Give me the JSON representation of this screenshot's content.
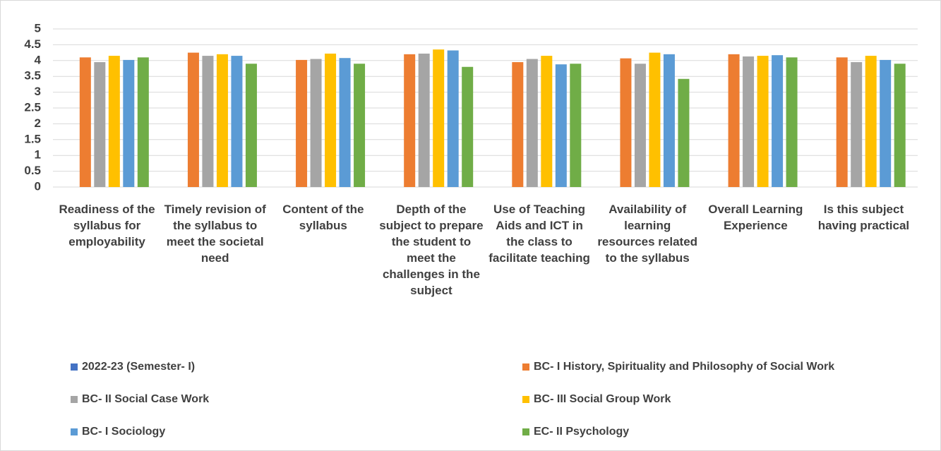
{
  "chart_data": {
    "type": "bar",
    "categories": [
      "Readiness of the syllabus for employability",
      "Timely revision of the syllabus to meet the societal need",
      "Content of the syllabus",
      "Depth of the subject to prepare the student to meet the challenges in the subject",
      "Use of Teaching Aids and ICT in the class to facilitate teaching",
      "Availability of learning resources related to the syllabus",
      "Overall Learning Experience",
      "Is this subject having practical"
    ],
    "series": [
      {
        "name": "2022-23 (Semester- I)",
        "color": "#4472c4",
        "values": [
          null,
          null,
          null,
          null,
          null,
          null,
          null,
          null
        ]
      },
      {
        "name": "BC- I History, Spirituality and Philosophy of Social Work",
        "color": "#ed7d31",
        "values": [
          4.1,
          4.25,
          4.02,
          4.2,
          3.95,
          4.07,
          4.2,
          4.1
        ]
      },
      {
        "name": "BC- II Social Case Work",
        "color": "#a5a5a5",
        "values": [
          3.95,
          4.15,
          4.05,
          4.22,
          4.05,
          3.9,
          4.13,
          3.95
        ]
      },
      {
        "name": "BC- III Social Group Work",
        "color": "#ffc000",
        "values": [
          4.15,
          4.2,
          4.22,
          4.35,
          4.15,
          4.25,
          4.15,
          4.15
        ]
      },
      {
        "name": "BC- I Sociology",
        "color": "#5b9bd5",
        "values": [
          4.02,
          4.15,
          4.08,
          4.32,
          3.88,
          4.2,
          4.17,
          4.02
        ]
      },
      {
        "name": "EC- II Psychology",
        "color": "#70ad47",
        "values": [
          4.1,
          3.9,
          3.9,
          3.8,
          3.9,
          3.42,
          4.1,
          3.9
        ]
      }
    ],
    "ylim": [
      0,
      5
    ],
    "yticks": [
      0,
      0.5,
      1,
      1.5,
      2,
      2.5,
      3,
      3.5,
      4,
      4.5,
      5
    ],
    "grid": true
  }
}
